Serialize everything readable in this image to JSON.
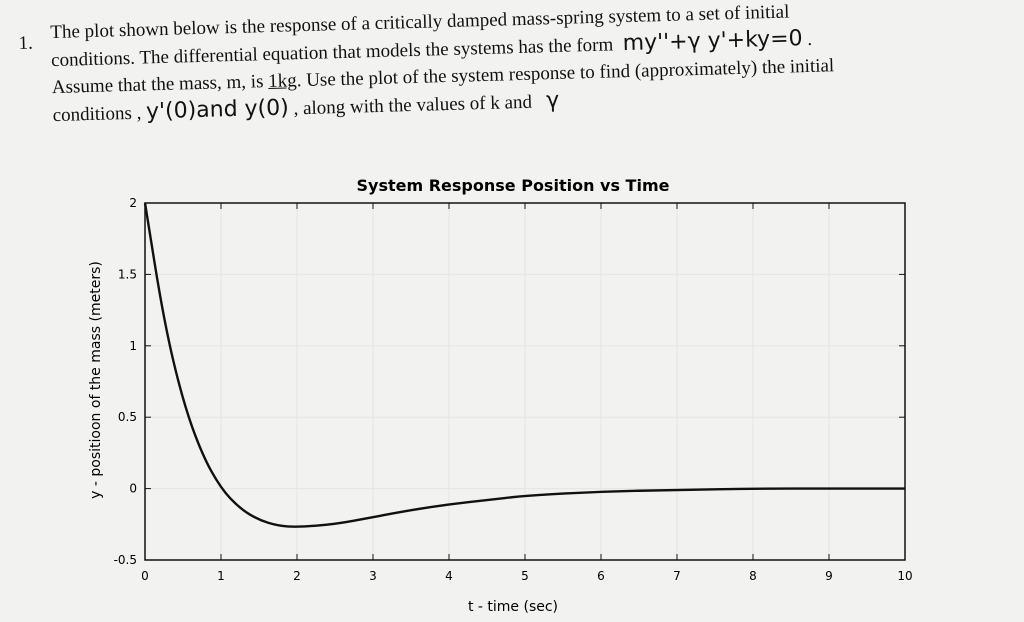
{
  "problem": {
    "number": "1.",
    "line1": "The plot shown below is the response of a critically damped mass-spring system to a set of initial",
    "line2a": "conditions.  The differential equation that models the systems has the form",
    "equation": "my''+γ y'+ky=0",
    "line2b": " .",
    "line3a": "Assume that the mass, m, is ",
    "mass": "1kg",
    "line3b": ".  Use the plot of the system response to  find (approximately) the initial",
    "line4a": "conditions ,",
    "ic": "y'(0)and y(0)",
    "line4b": " , along with the values of k and",
    "gamma": "γ"
  },
  "chart_data": {
    "type": "line",
    "title": "System Response Position vs Time",
    "xlabel": "t - time (sec)",
    "ylabel": "y - positioon of the mass (meters)",
    "xlim": [
      0,
      10
    ],
    "ylim": [
      -0.5,
      2
    ],
    "xticks": [
      "0",
      "1",
      "2",
      "3",
      "4",
      "5",
      "6",
      "7",
      "8",
      "9",
      "10"
    ],
    "yticks": [
      "-0.5",
      "0",
      "0.5",
      "1",
      "1.5",
      "2"
    ],
    "grid": true,
    "line_color": "#111111",
    "series": [
      {
        "x": [
          0,
          0.25,
          0.5,
          0.75,
          1,
          1.25,
          1.5,
          1.75,
          2,
          2.5,
          3,
          3.5,
          4,
          4.5,
          5,
          6,
          7,
          8,
          9,
          10
        ],
        "y": [
          2,
          1.17,
          0.61,
          0.24,
          0,
          -0.14,
          -0.22,
          -0.26,
          -0.27,
          -0.25,
          -0.2,
          -0.15,
          -0.11,
          -0.08,
          -0.05,
          -0.02,
          -0.01,
          0,
          0,
          0
        ]
      }
    ]
  }
}
